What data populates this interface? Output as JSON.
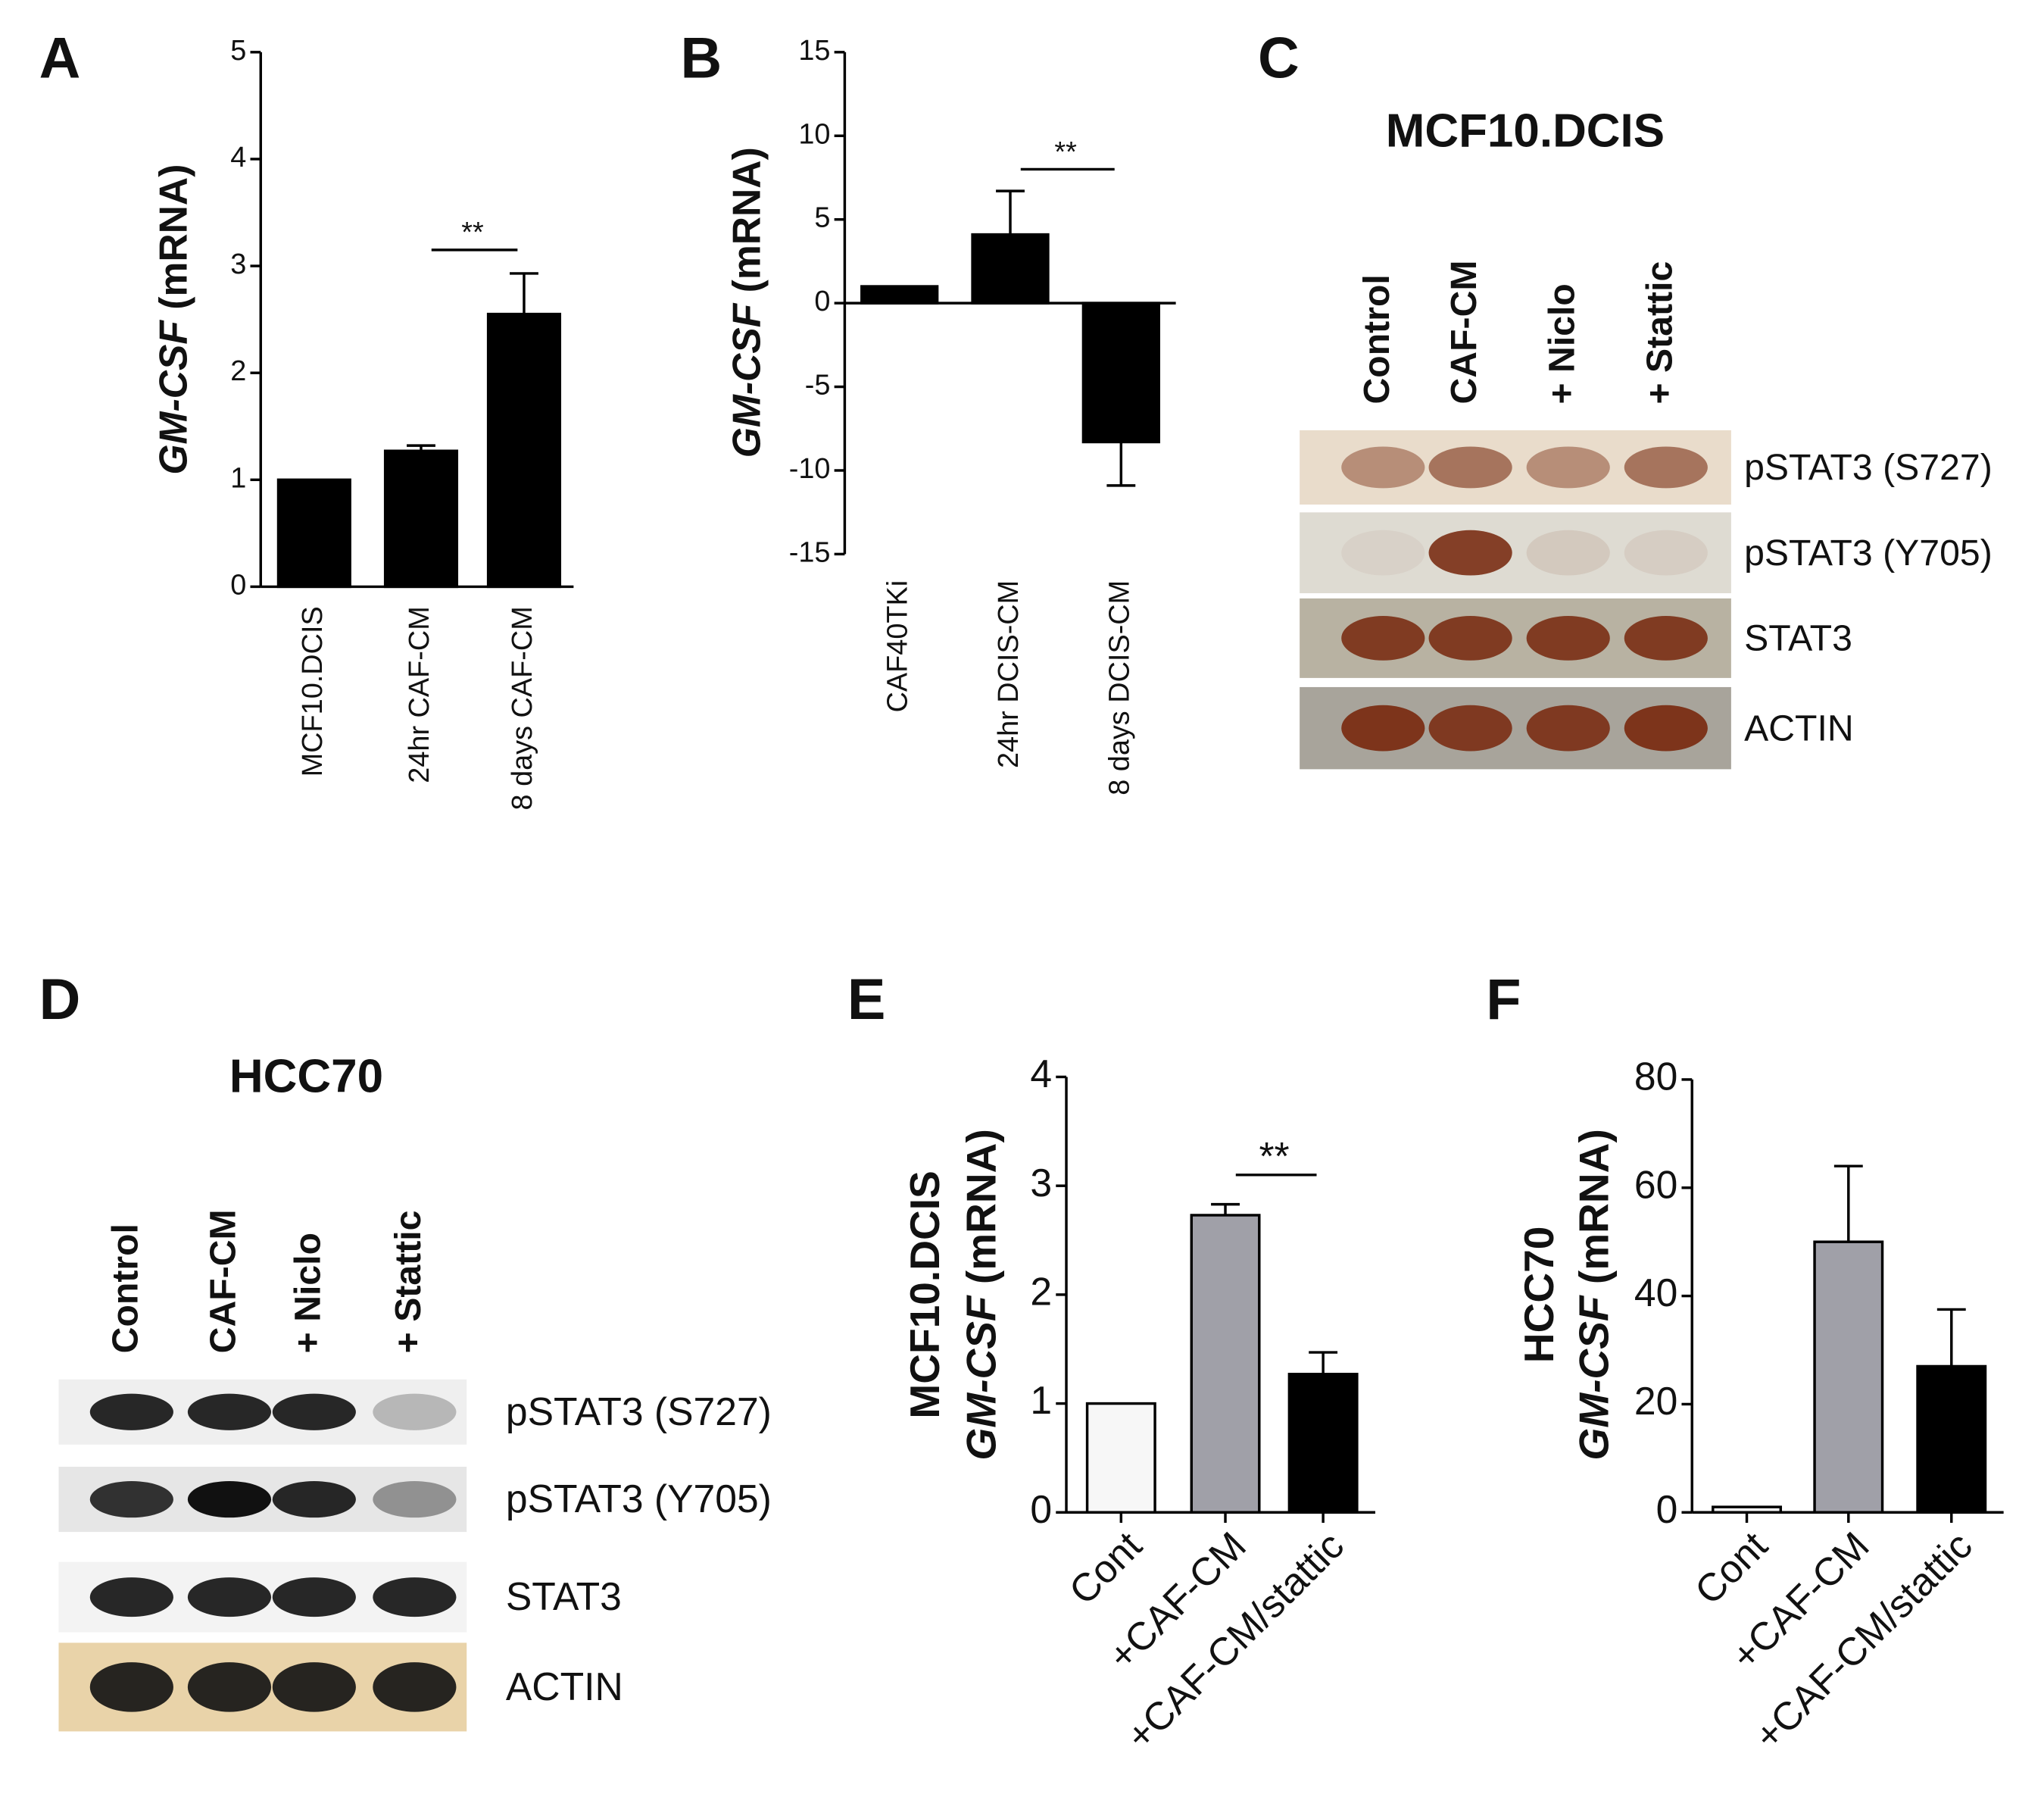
{
  "panel_labels": [
    "A",
    "B",
    "C",
    "D",
    "E",
    "F"
  ],
  "chart_data": [
    {
      "type": "bar",
      "ylabel_gene": "GM-CSF",
      "ylabel_unit": "(mRNA)",
      "categories": [
        "MCF10.DCIS",
        "24hr CAF-CM",
        "8 days CAF-CM"
      ],
      "values": [
        1,
        1.27,
        2.55
      ],
      "errors": [
        0,
        0.05,
        0.38
      ],
      "color": "#000000",
      "ylim": [
        0,
        5
      ],
      "yticks": [
        0,
        1,
        2,
        3,
        4,
        5
      ],
      "significance": [
        {
          "from": 1,
          "to": 2,
          "y": 3.15,
          "label": "**"
        }
      ]
    },
    {
      "type": "bar",
      "ylabel_gene": "GM-CSF",
      "ylabel_unit": "(mRNA)",
      "categories": [
        "CAF40TKi",
        "24hr DCIS-CM",
        "8 days DCIS-CM"
      ],
      "values": [
        1,
        4.1,
        -8.3
      ],
      "errors": [
        0,
        2.6,
        2.6
      ],
      "color": "#000000",
      "ylim": [
        -15,
        15
      ],
      "yticks": [
        -15,
        -10,
        -5,
        0,
        5,
        10,
        15
      ],
      "significance": [
        {
          "from": 1,
          "to": 2,
          "y": 8,
          "label": "**"
        }
      ]
    },
    {
      "type": "bar",
      "ylabel_cell": "MCF10.DCIS",
      "ylabel_gene": "GM-CSF",
      "ylabel_unit": "(mRNA)",
      "categories": [
        "Cont",
        "+CAF-CM",
        "+CAF-CM/stattic"
      ],
      "values": [
        1,
        2.73,
        1.27
      ],
      "errors": [
        0,
        0.1,
        0.2
      ],
      "colors": [
        "#f7f7f7",
        "#a0a0a8",
        "#000000"
      ],
      "ylim": [
        0,
        4
      ],
      "yticks": [
        0,
        1,
        2,
        3,
        4
      ],
      "significance": [
        {
          "from": 1,
          "to": 2,
          "y": 3.1,
          "label": "**"
        }
      ]
    },
    {
      "type": "bar",
      "ylabel_cell": "HCC70",
      "ylabel_gene": "GM-CSF",
      "ylabel_unit": "(mRNA)",
      "categories": [
        "Cont",
        "+CAF-CM",
        "+CAF-CM/stattic"
      ],
      "values": [
        1,
        50,
        27
      ],
      "errors": [
        0,
        14,
        10.5
      ],
      "colors": [
        "#f7f7f7",
        "#a0a0a8",
        "#000000"
      ],
      "ylim": [
        0,
        80
      ],
      "yticks": [
        0,
        20,
        40,
        60,
        80
      ]
    }
  ],
  "blots": [
    {
      "title": "MCF10.DCIS",
      "lanes": [
        "Control",
        "CAF-CM",
        "+ Niclo",
        "+ Stattic"
      ],
      "rows": [
        "pSTAT3 (S727)",
        "pSTAT3 (Y705)",
        "STAT3",
        "ACTIN"
      ]
    },
    {
      "title": "HCC70",
      "lanes": [
        "Control",
        "CAF-CM",
        "+ Niclo",
        "+ Stattic"
      ],
      "rows": [
        "pSTAT3 (S727)",
        "pSTAT3 (Y705)",
        "STAT3",
        "ACTIN"
      ]
    }
  ]
}
